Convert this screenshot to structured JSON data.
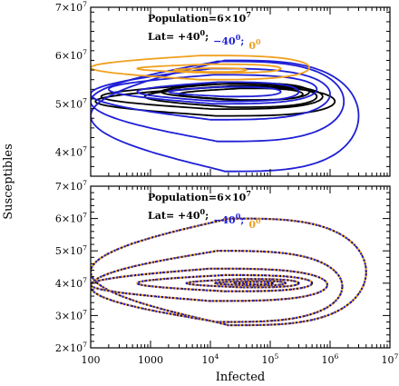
{
  "chart_data": {
    "type": "line",
    "colors": {
      "black": "#000000",
      "blue": "#1f1fd6",
      "orange": "#f0a020",
      "axis": "#000000"
    },
    "shared_x": {
      "label": "Infected",
      "scale": "log",
      "lim": [
        100,
        10000000
      ],
      "ticks": [
        {
          "value": 100,
          "base": "100",
          "exp": ""
        },
        {
          "value": 1000,
          "base": "1000",
          "exp": ""
        },
        {
          "value": 10000,
          "base": "10",
          "exp": "4"
        },
        {
          "value": 100000,
          "base": "10",
          "exp": "5"
        },
        {
          "value": 1000000,
          "base": "10",
          "exp": "6"
        },
        {
          "value": 10000000,
          "base": "10",
          "exp": "7"
        }
      ]
    },
    "shared_y": {
      "label": "Susceptibles"
    },
    "panels": [
      {
        "annotation_population": {
          "prefix": "Population=6×10",
          "exp": "7"
        },
        "annotation_lat": {
          "prefix": "Lat= ",
          "items": [
            {
              "text": "+40",
              "sup": "0",
              "suffix": ";",
              "color": "black"
            },
            {
              "text": "−40",
              "sup": "0",
              "suffix": ";",
              "color": "blue"
            },
            {
              "text": "0",
              "sup": "0",
              "suffix": "",
              "color": "orange"
            }
          ]
        },
        "ylim": [
          35000000,
          70000000
        ],
        "yticks": [
          {
            "value": 40000000,
            "base": "4×10",
            "exp": "7"
          },
          {
            "value": 50000000,
            "base": "5×10",
            "exp": "7"
          },
          {
            "value": 60000000,
            "base": "6×10",
            "exp": "7"
          },
          {
            "value": 70000000,
            "base": "7×10",
            "exp": "7"
          }
        ],
        "series": [
          {
            "color": "black",
            "style": "solid",
            "loops": [
              {
                "xmin": 800,
                "xmax": 600000,
                "ycenter": 51500000,
                "yhalf": 2200000
              },
              {
                "xmin": 1500,
                "xmax": 450000,
                "ycenter": 52500000,
                "yhalf": 1800000
              },
              {
                "xmin": 150,
                "xmax": 750000,
                "ycenter": 51500000,
                "yhalf": 2600000
              },
              {
                "xmin": 3000,
                "xmax": 350000,
                "ycenter": 52000000,
                "yhalf": 1200000
              },
              {
                "xmin": 120,
                "xmax": 1200000,
                "ycenter": 50500000,
                "yhalf": 3000000
              }
            ]
          },
          {
            "color": "blue",
            "style": "solid",
            "loops": [
              {
                "xmin": 100,
                "xmax": 3000000,
                "ycenter": 47500000,
                "yhalf": 11500000
              },
              {
                "xmin": 100,
                "xmax": 1700000,
                "ycenter": 50500000,
                "yhalf": 8300000
              },
              {
                "xmin": 100,
                "xmax": 1000000,
                "ycenter": 52000000,
                "yhalf": 5300000
              },
              {
                "xmin": 200,
                "xmax": 600000,
                "ycenter": 53000000,
                "yhalf": 3000000
              },
              {
                "xmin": 600,
                "xmax": 300000,
                "ycenter": 52500000,
                "yhalf": 2000000
              },
              {
                "xmin": 2000,
                "xmax": 150000,
                "ycenter": 52500000,
                "yhalf": 1000000
              }
            ]
          },
          {
            "color": "orange",
            "style": "solid",
            "loops": [
              {
                "xmin": 100,
                "xmax": 450000,
                "ycenter": 57500000,
                "yhalf": 2500000
              },
              {
                "xmin": 600,
                "xmax": 150000,
                "ycenter": 57300000,
                "yhalf": 900000
              },
              {
                "xmin": 2500,
                "xmax": 40000,
                "ycenter": 57000000,
                "yhalf": 400000
              }
            ]
          }
        ]
      },
      {
        "annotation_population": {
          "prefix": "Population=6×10",
          "exp": "7"
        },
        "annotation_lat": {
          "prefix": "Lat= ",
          "items": [
            {
              "text": "+40",
              "sup": "0",
              "suffix": ";",
              "color": "black"
            },
            {
              "text": "−40",
              "sup": "0",
              "suffix": ";",
              "color": "blue"
            },
            {
              "text": "0",
              "sup": "0",
              "suffix": "",
              "color": "orange"
            }
          ]
        },
        "ylim": [
          20000000,
          70000000
        ],
        "yticks": [
          {
            "value": 20000000,
            "base": "2×10",
            "exp": "7"
          },
          {
            "value": 30000000,
            "base": "3×10",
            "exp": "7"
          },
          {
            "value": 40000000,
            "base": "4×10",
            "exp": "7"
          },
          {
            "value": 50000000,
            "base": "5×10",
            "exp": "7"
          },
          {
            "value": 60000000,
            "base": "6×10",
            "exp": "7"
          },
          {
            "value": 70000000,
            "base": "7×10",
            "exp": "7"
          }
        ],
        "series": [
          {
            "color": "black",
            "style": "dotted-overlay",
            "loops": [
              {
                "xmin": 100,
                "xmax": 4000000,
                "ycenter": 43500000,
                "yhalf": 16500000
              },
              {
                "xmin": 100,
                "xmax": 1600000,
                "ycenter": 39000000,
                "yhalf": 11000000
              },
              {
                "xmin": 100,
                "xmax": 900000,
                "ycenter": 39500000,
                "yhalf": 5000000
              },
              {
                "xmin": 600,
                "xmax": 500000,
                "ycenter": 40000000,
                "yhalf": 2500000
              },
              {
                "xmin": 4000,
                "xmax": 300000,
                "ycenter": 40000000,
                "yhalf": 1300000
              },
              {
                "xmin": 12000,
                "xmax": 180000,
                "ycenter": 40000000,
                "yhalf": 700000
              },
              {
                "xmin": 25000,
                "xmax": 110000,
                "ycenter": 40000000,
                "yhalf": 400000
              }
            ]
          }
        ]
      }
    ]
  }
}
